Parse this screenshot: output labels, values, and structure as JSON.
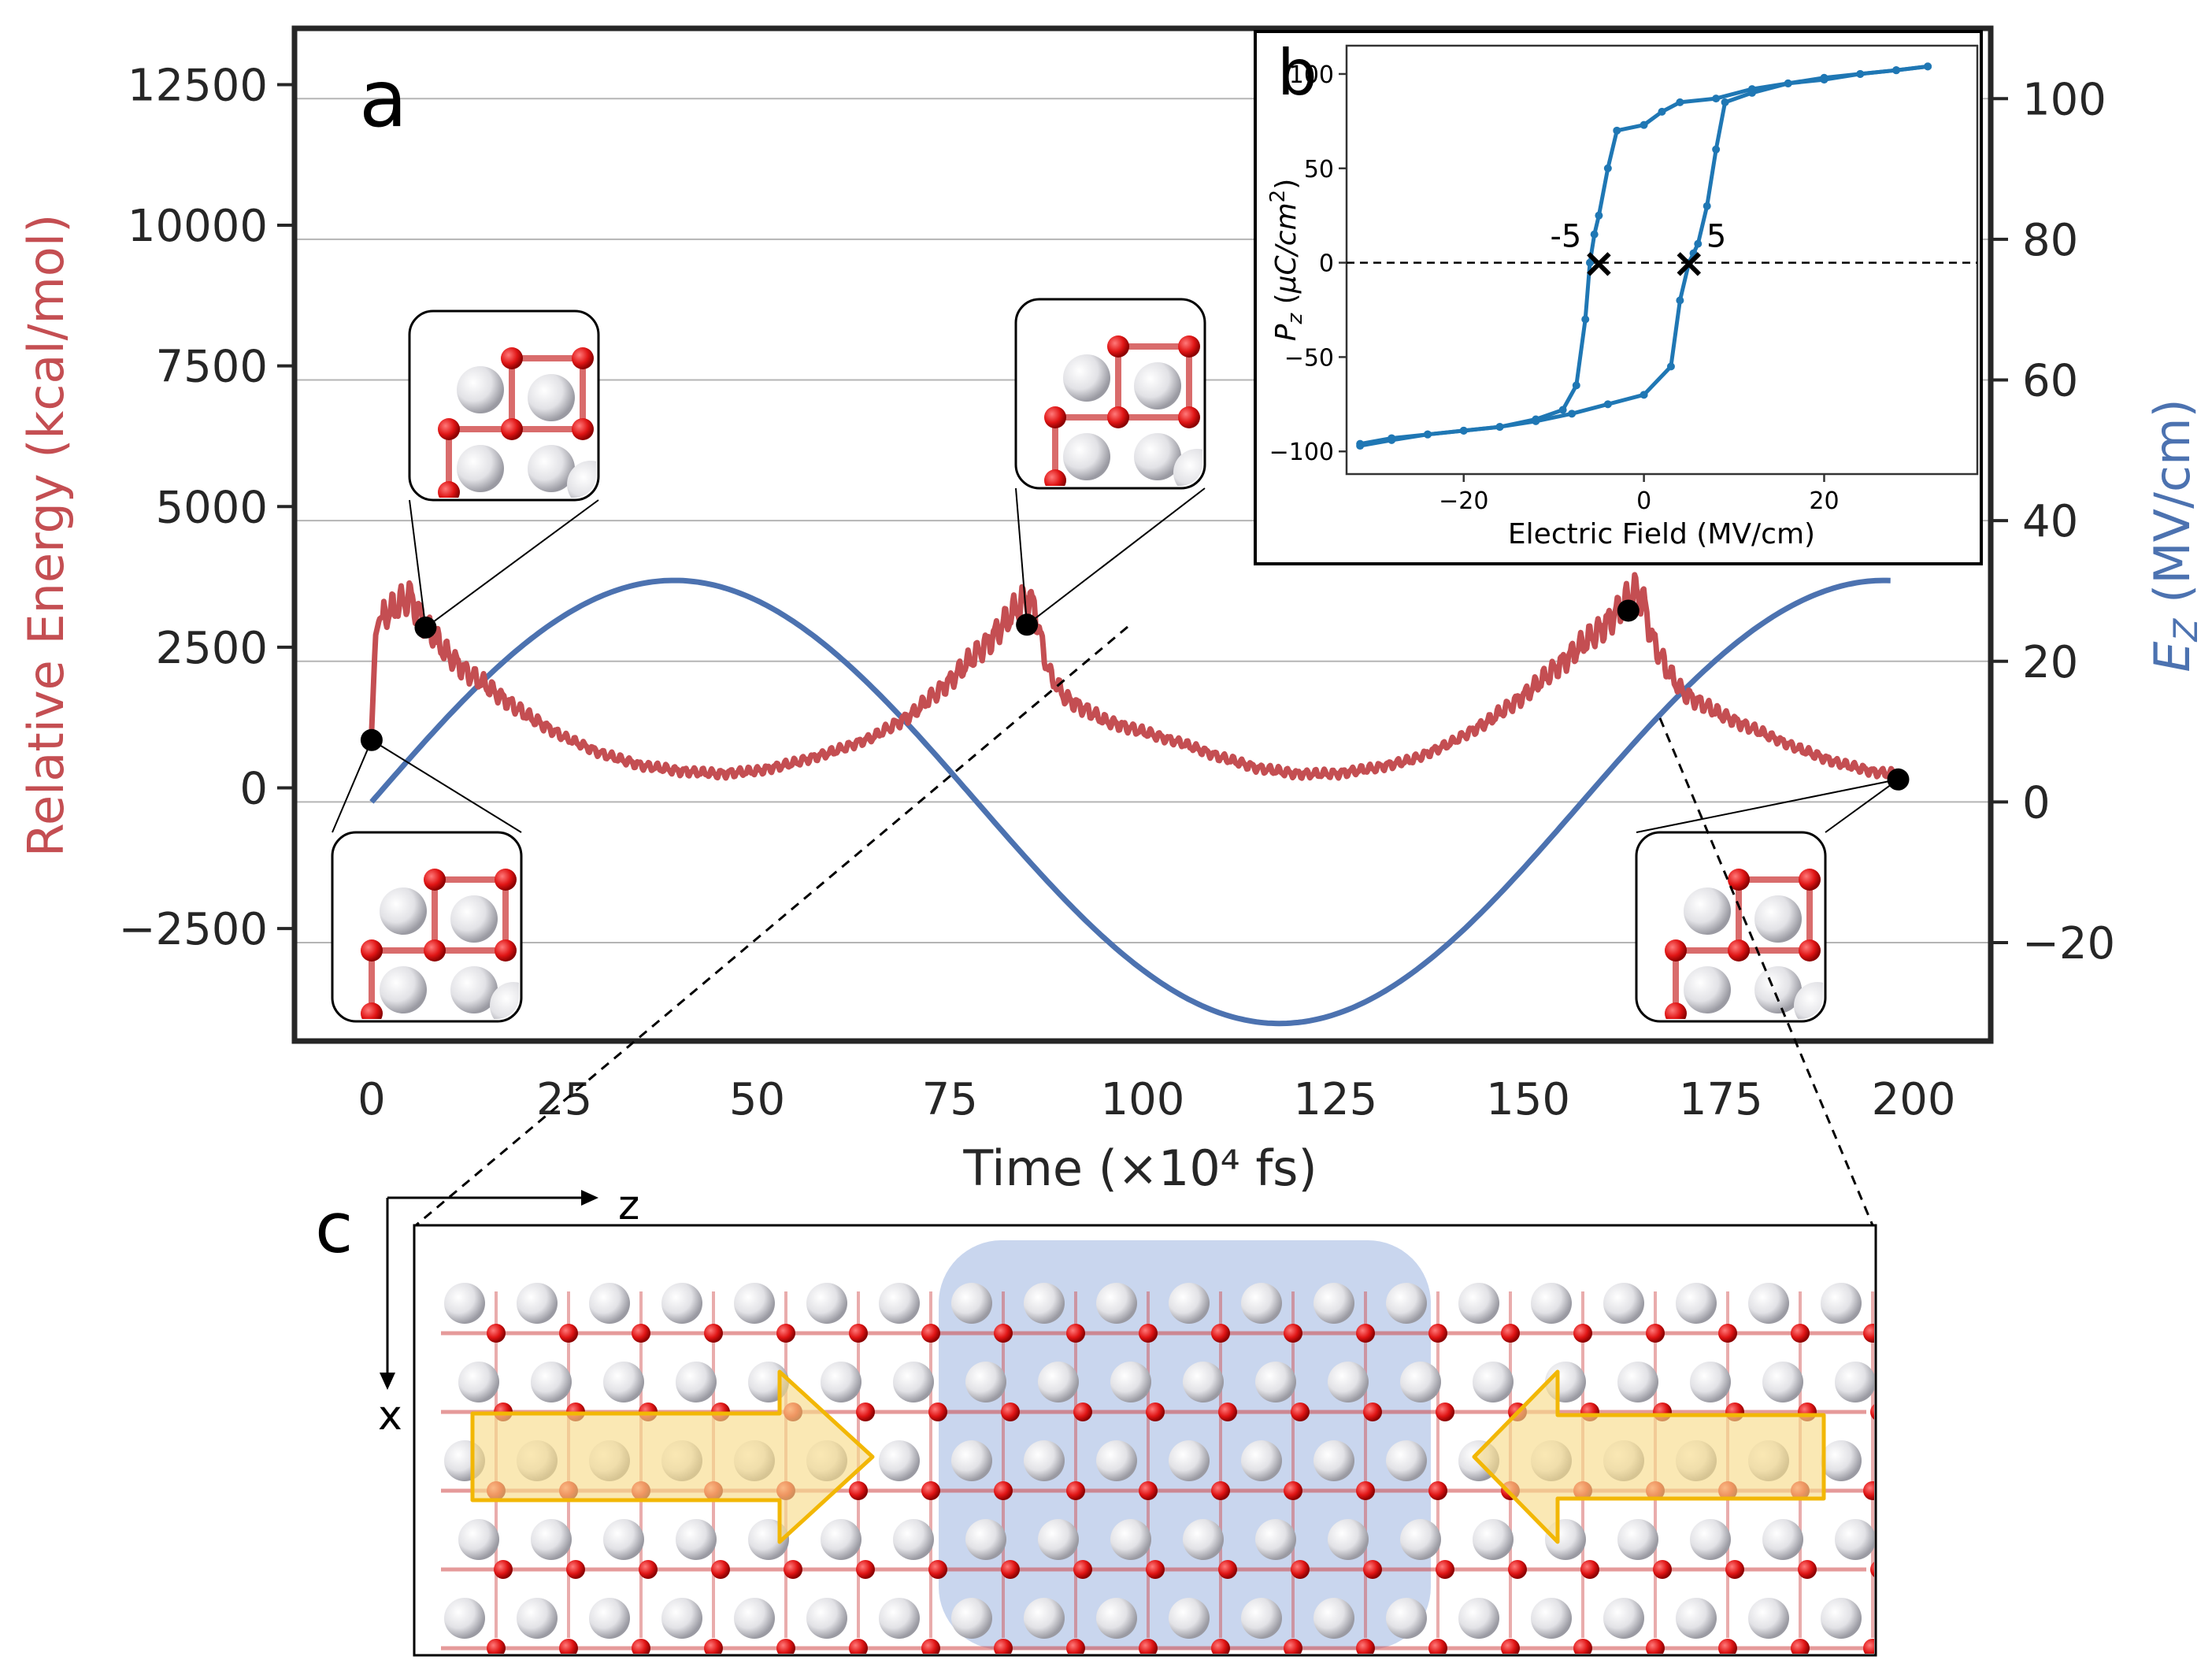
{
  "figure": {
    "panel_a_label": "a",
    "panel_b_label": "b",
    "panel_c_label": "c",
    "axis_c_horizontal": "z",
    "axis_c_vertical": "x"
  },
  "colors": {
    "energy": "#c44e52",
    "field": "#4c72b0",
    "hysteresis": "#1f77b4",
    "atom_white": "#e6e6ea",
    "atom_red": "#e01515",
    "bond": "#d04848",
    "highlight": "#c9d6ee",
    "arrow_fill": "#f7dc8c",
    "arrow_stroke": "#f2b705"
  },
  "chart_data": [
    {
      "type": "line",
      "panel": "a",
      "xlabel": "Time (×10⁴ fs)",
      "ylabel_left": "Relative Energy (kcal/mol)",
      "ylabel_right": "E_Z (MV/cm)",
      "xlim": [
        -10,
        210
      ],
      "ylim_left": [
        -4500,
        13500
      ],
      "ylim_right": [
        -34,
        110
      ],
      "x_ticks": [
        0,
        25,
        50,
        75,
        100,
        125,
        150,
        175,
        200
      ],
      "x_tick_labels": [
        "0",
        "25",
        "50",
        "75",
        "100",
        "125",
        "150",
        "175",
        "200"
      ],
      "y_left_ticks": [
        -2500,
        0,
        2500,
        5000,
        7500,
        10000,
        12500
      ],
      "y_left_tick_labels": [
        "−2500",
        "0",
        "2500",
        "5000",
        "7500",
        "10000",
        "12500"
      ],
      "y_right_ticks": [
        -20,
        0,
        20,
        40,
        60,
        80,
        100
      ],
      "y_right_tick_labels": [
        "−20",
        "0",
        "20",
        "40",
        "60",
        "80",
        "100"
      ],
      "grid": "horizontal",
      "series": [
        {
          "axis": "left",
          "x": [
            0,
            0.5,
            1,
            2,
            3,
            5,
            7,
            9,
            12,
            15,
            20,
            25,
            30,
            35,
            40,
            45,
            50,
            55,
            60,
            65,
            70,
            75,
            80,
            85,
            86,
            87,
            88,
            90,
            95,
            100,
            105,
            110,
            115,
            120,
            125,
            130,
            135,
            140,
            145,
            150,
            155,
            160,
            164,
            165,
            166,
            168,
            170,
            175,
            180,
            185,
            190,
            195,
            198
          ],
          "values": [
            1000,
            2700,
            3000,
            3100,
            3200,
            3400,
            2900,
            2500,
            2100,
            1800,
            1300,
            900,
            600,
            400,
            300,
            250,
            300,
            450,
            650,
            900,
            1300,
            1900,
            2600,
            3400,
            3200,
            2500,
            2000,
            1600,
            1200,
            1000,
            800,
            550,
            350,
            250,
            250,
            350,
            500,
            800,
            1200,
            1700,
            2300,
            2900,
            3500,
            3300,
            2700,
            2100,
            1700,
            1300,
            1000,
            700,
            450,
            280,
            250
          ]
        },
        {
          "axis": "right",
          "function": "sine",
          "x_start": 0,
          "x_end": 197,
          "offset": 0,
          "amplitude": 31.5,
          "period": 157
        }
      ],
      "markers": [
        {
          "x": 0,
          "y": 850
        },
        {
          "x": 7,
          "y": 2850
        },
        {
          "x": 85,
          "y": 2900
        },
        {
          "x": 163,
          "y": 3150
        },
        {
          "x": 198,
          "y": 150
        }
      ]
    },
    {
      "type": "line",
      "panel": "b",
      "xlabel": "Electric Field (MV/cm)",
      "ylabel": "P_Z (μC/cm²)",
      "xlim": [
        -33,
        37
      ],
      "ylim": [
        -112,
        115
      ],
      "x_ticks": [
        -20,
        0,
        20
      ],
      "x_tick_labels": [
        "−20",
        "0",
        "20"
      ],
      "y_ticks": [
        -100,
        -50,
        0,
        50,
        100
      ],
      "y_tick_labels": [
        "−100",
        "−50",
        "0",
        "50",
        "100"
      ],
      "zero_line": "dashed",
      "series": [
        {
          "x": [
            -31.5,
            -28,
            -24,
            -20,
            -16,
            -12,
            -9,
            -7.5,
            -6.5,
            -6,
            -5.5,
            -5,
            -4,
            -3,
            0,
            2,
            4,
            8,
            12,
            16,
            20,
            24,
            28,
            31.5
          ],
          "values": [
            -96,
            -93,
            -91,
            -89,
            -87,
            -83,
            -78,
            -65,
            -30,
            0,
            15,
            25,
            50,
            70,
            73,
            80,
            85,
            87,
            92,
            95,
            98,
            100,
            102,
            104
          ]
        },
        {
          "x": [
            31.5,
            28,
            24,
            20,
            16,
            12,
            9,
            8,
            7,
            6,
            5.5,
            5,
            4,
            3,
            0,
            -4,
            -8,
            -12,
            -16,
            -20,
            -24,
            -28,
            -31.5
          ],
          "values": [
            104,
            102,
            100,
            97,
            95,
            90,
            85,
            60,
            30,
            10,
            5,
            0,
            -20,
            -55,
            -70,
            -75,
            -80,
            -84,
            -87,
            -89,
            -91,
            -94,
            -97
          ]
        }
      ],
      "annotations": [
        {
          "label": "-5",
          "x": -5,
          "y": 0
        },
        {
          "label": "5",
          "x": 5,
          "y": 0
        }
      ]
    }
  ]
}
